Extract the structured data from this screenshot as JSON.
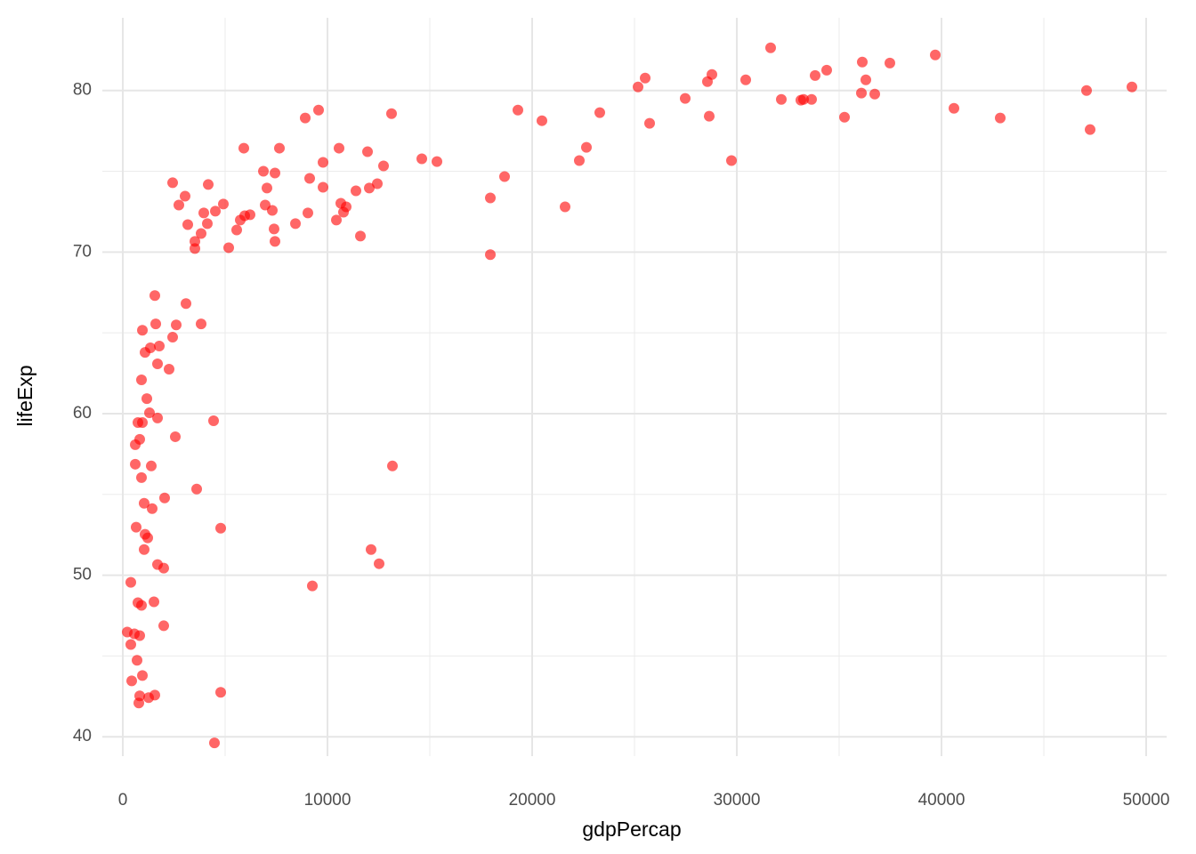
{
  "chart_data": {
    "type": "scatter",
    "x_label": "gdpPercap",
    "y_label": "lifeExp",
    "color": "#ff0000",
    "alpha": 0.6,
    "grid": true,
    "xlim": [
      -1000,
      51000
    ],
    "ylim": [
      38.8,
      84.5
    ],
    "xticks": [
      0,
      10000,
      20000,
      30000,
      40000,
      50000
    ],
    "yticks": [
      40,
      50,
      60,
      70,
      80
    ],
    "x_minor_ticks": [
      5000,
      15000,
      25000,
      35000,
      45000
    ],
    "y_minor_ticks": [
      45,
      55,
      65,
      75
    ],
    "x": [
      31652,
      39696,
      36130,
      37478,
      34391,
      33826,
      28783,
      25522,
      30435,
      36304,
      28565,
      25174,
      49304,
      47087,
      36087,
      36739,
      27478,
      32174,
      33652,
      33130,
      33261,
      40609,
      9565,
      19304,
      23304,
      13130,
      8913,
      28652,
      35261,
      42870,
      20478,
      25739,
      47261,
      5913,
      7652,
      10565,
      22652,
      11957,
      14609,
      15348,
      22304,
      29739,
      9783,
      12739,
      6870,
      7435,
      18652,
      9130,
      2435,
      4174,
      12435,
      7043,
      9783,
      12043,
      11391,
      3043,
      17957,
      4913,
      10652,
      2739,
      6957,
      10913,
      21609,
      7304,
      4522,
      10783,
      3957,
      9043,
      6217,
      5957,
      5739,
      10435,
      3174,
      4130,
      8435,
      5565,
      7391,
      3826,
      11609,
      3522,
      7435,
      3522,
      5174,
      17957,
      1565,
      3087,
      1609,
      2609,
      3826,
      957,
      2435,
      1783,
      1348,
      1087,
      1696,
      2261,
      913,
      1174,
      1304,
      1696,
      739,
      957,
      4435,
      2565,
      826,
      609,
      609,
      1391,
      13174,
      913,
      3609,
      2043,
      1043,
      1435,
      652,
      4783,
      1087,
      1217,
      12130,
      1043,
      12522,
      1696,
      2000,
      391,
      9261,
      739,
      1522,
      913,
      2000,
      217,
      565,
      826,
      391,
      696,
      957,
      435,
      4783,
      826,
      1565,
      1261,
      783,
      4478
    ],
    "values": [
      82.64,
      82.2,
      81.76,
      81.7,
      81.26,
      80.93,
      80.99,
      80.77,
      80.66,
      80.66,
      80.55,
      80.22,
      80.22,
      80.0,
      79.84,
      79.78,
      79.51,
      79.45,
      79.45,
      79.4,
      79.45,
      78.9,
      78.79,
      78.79,
      78.63,
      78.57,
      78.3,
      78.41,
      78.35,
      78.3,
      78.13,
      77.97,
      77.58,
      76.43,
      76.43,
      76.43,
      76.48,
      76.21,
      75.77,
      75.6,
      75.66,
      75.66,
      75.55,
      75.33,
      75.0,
      74.89,
      74.67,
      74.56,
      74.29,
      74.18,
      74.23,
      73.96,
      74.01,
      73.96,
      73.79,
      73.46,
      73.35,
      72.97,
      73.02,
      72.91,
      72.91,
      72.8,
      72.8,
      72.58,
      72.53,
      72.47,
      72.42,
      72.42,
      72.31,
      72.25,
      71.98,
      71.98,
      71.7,
      71.76,
      71.76,
      71.37,
      71.43,
      71.15,
      70.99,
      70.66,
      70.66,
      70.22,
      70.27,
      69.84,
      67.31,
      66.81,
      65.55,
      65.49,
      65.55,
      65.16,
      64.73,
      64.18,
      64.07,
      63.79,
      63.08,
      62.75,
      62.09,
      60.93,
      60.05,
      59.73,
      59.45,
      59.45,
      59.56,
      58.57,
      58.41,
      58.08,
      56.87,
      56.76,
      56.76,
      56.04,
      55.33,
      54.78,
      54.45,
      54.12,
      52.97,
      52.91,
      52.53,
      52.31,
      51.59,
      51.59,
      50.71,
      50.66,
      50.44,
      49.56,
      49.34,
      48.3,
      48.35,
      48.13,
      46.87,
      46.48,
      46.37,
      46.26,
      45.71,
      44.73,
      43.79,
      43.46,
      42.75,
      42.53,
      42.58,
      42.42,
      42.09,
      39.62
    ]
  }
}
